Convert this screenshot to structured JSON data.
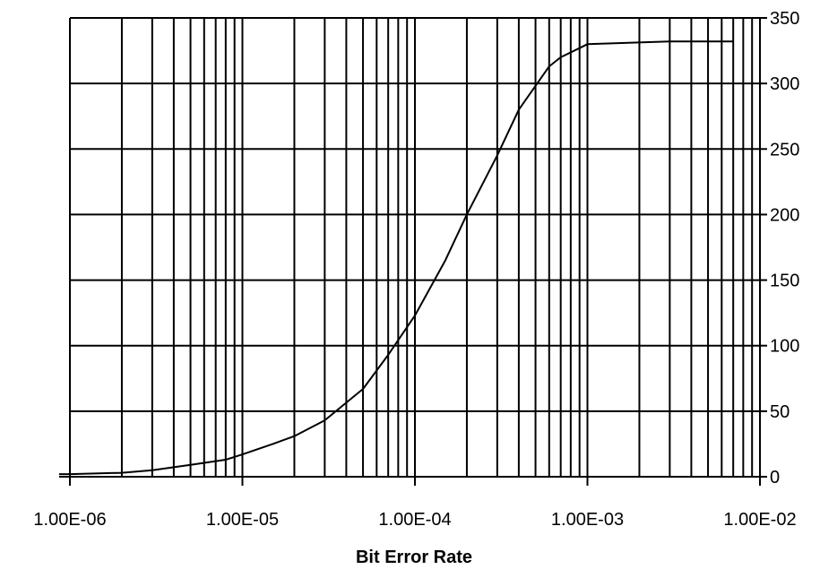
{
  "chart_data": {
    "type": "line",
    "title": "",
    "xlabel": "Bit Error Rate",
    "ylabel": "",
    "x_scale": "log",
    "xlim": [
      1e-06,
      0.01
    ],
    "ylim": [
      0,
      350
    ],
    "x_ticks": [
      {
        "value": 1e-06,
        "label": "1.00E-06"
      },
      {
        "value": 1e-05,
        "label": "1.00E-05"
      },
      {
        "value": 0.0001,
        "label": "1.00E-04"
      },
      {
        "value": 0.001,
        "label": "1.00E-03"
      },
      {
        "value": 0.01,
        "label": "1.00E-02"
      }
    ],
    "y_ticks": [
      0,
      50,
      100,
      150,
      200,
      250,
      300,
      350
    ],
    "y_axis_side": "right",
    "grid": true,
    "legend": "none",
    "line_color": "#000000",
    "series": [
      {
        "x": [
          1e-06,
          2e-06,
          3e-06,
          5e-06,
          8e-06,
          1e-05,
          1.5e-05,
          2e-05,
          3e-05,
          5e-05,
          7e-05,
          0.0001,
          0.00015,
          0.0002,
          0.0003,
          0.0004,
          0.0006,
          0.0007,
          0.001,
          0.003,
          0.007
        ],
        "y": [
          2,
          3,
          5,
          9,
          13,
          17,
          25,
          31,
          43,
          67,
          93,
          123,
          165,
          200,
          245,
          280,
          313,
          320,
          330,
          332,
          332
        ]
      }
    ]
  }
}
